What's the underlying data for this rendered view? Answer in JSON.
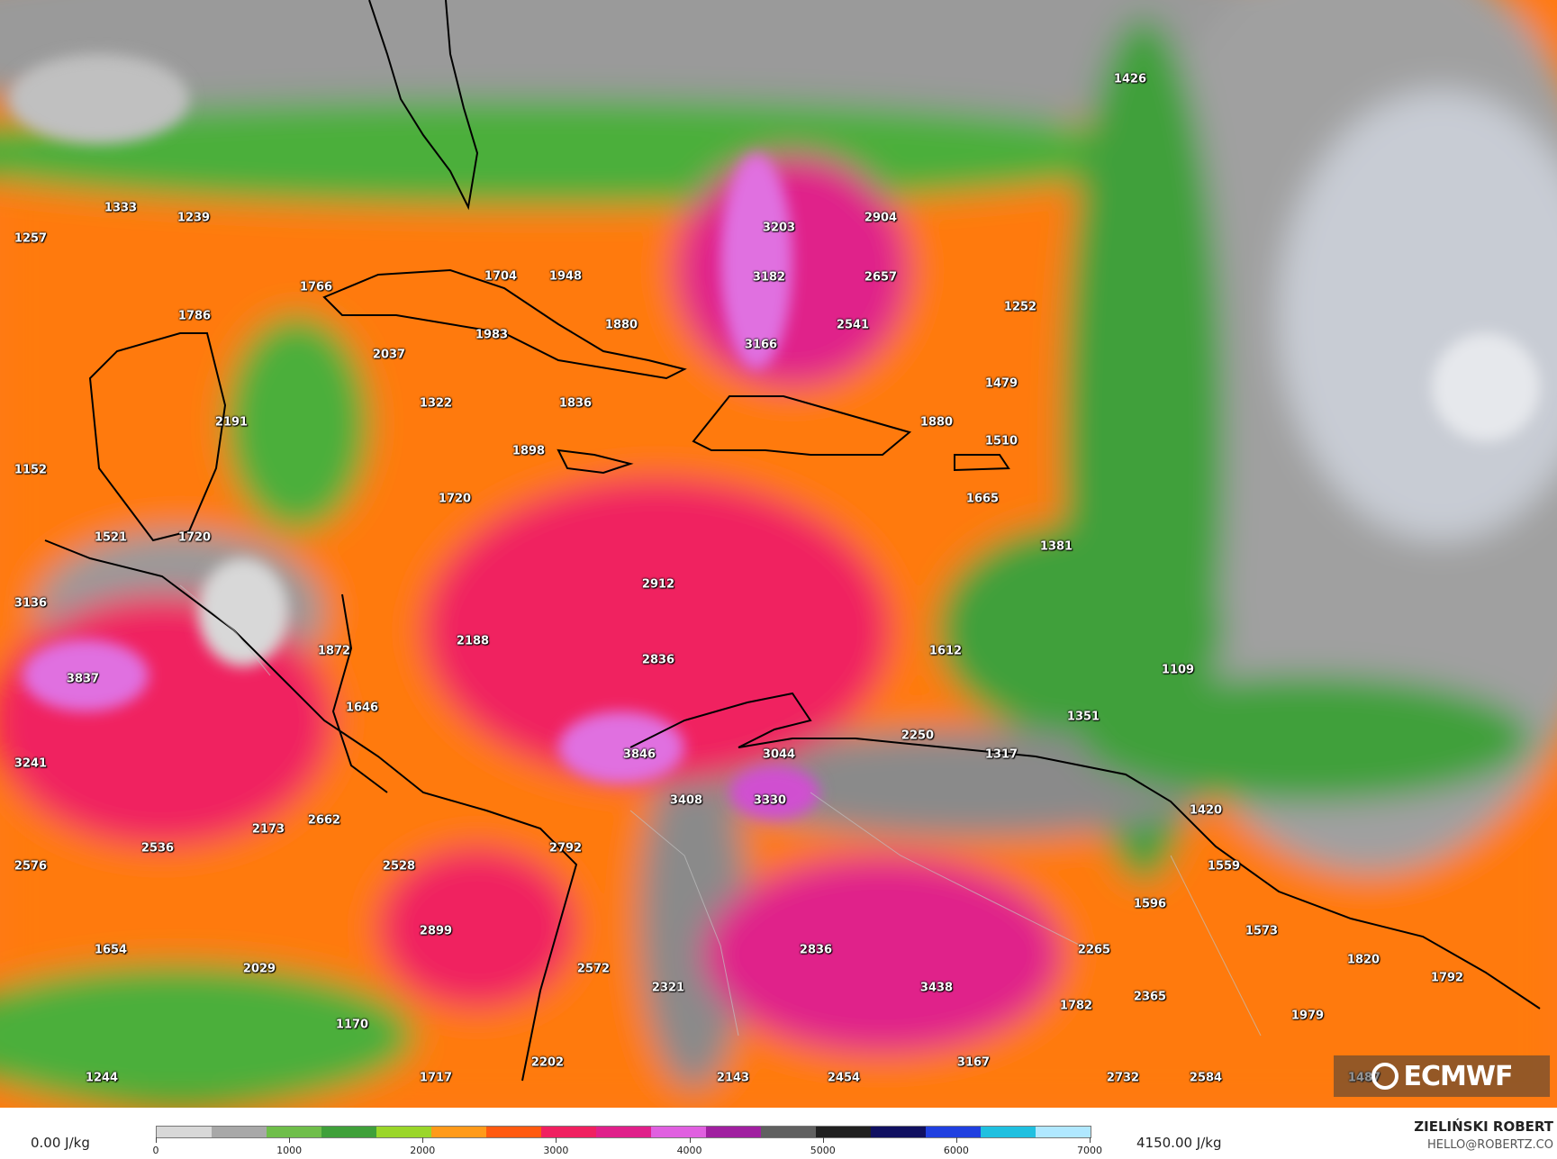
{
  "map": {
    "labels": [
      {
        "v": "1426"
      },
      {
        "v": "1333"
      },
      {
        "v": "1239"
      },
      {
        "v": "1257"
      },
      {
        "v": "3203"
      },
      {
        "v": "2904"
      },
      {
        "v": "1766"
      },
      {
        "v": "1704"
      },
      {
        "v": "1948"
      },
      {
        "v": "3182"
      },
      {
        "v": "2657"
      },
      {
        "v": "1252"
      },
      {
        "v": "1786"
      },
      {
        "v": "1880"
      },
      {
        "v": "1983"
      },
      {
        "v": "2541"
      },
      {
        "v": "3166"
      },
      {
        "v": "2037"
      },
      {
        "v": "1479"
      },
      {
        "v": "1322"
      },
      {
        "v": "1836"
      },
      {
        "v": "2191"
      },
      {
        "v": "1880"
      },
      {
        "v": "1510"
      },
      {
        "v": "1898"
      },
      {
        "v": "1152"
      },
      {
        "v": "1720"
      },
      {
        "v": "1665"
      },
      {
        "v": "1521"
      },
      {
        "v": "1720"
      },
      {
        "v": "1381"
      },
      {
        "v": "2912"
      },
      {
        "v": "3136"
      },
      {
        "v": "2188"
      },
      {
        "v": "1872"
      },
      {
        "v": "1612"
      },
      {
        "v": "2836"
      },
      {
        "v": "3837"
      },
      {
        "v": "1109"
      },
      {
        "v": "1646"
      },
      {
        "v": "1351"
      },
      {
        "v": "2250"
      },
      {
        "v": "3846"
      },
      {
        "v": "3044"
      },
      {
        "v": "1317"
      },
      {
        "v": "3241"
      },
      {
        "v": "3408"
      },
      {
        "v": "3330"
      },
      {
        "v": "1420"
      },
      {
        "v": "2173"
      },
      {
        "v": "2662"
      },
      {
        "v": "2536"
      },
      {
        "v": "2792"
      },
      {
        "v": "2576"
      },
      {
        "v": "2528"
      },
      {
        "v": "1559"
      },
      {
        "v": "1596"
      },
      {
        "v": "2899"
      },
      {
        "v": "1573"
      },
      {
        "v": "1654"
      },
      {
        "v": "2836"
      },
      {
        "v": "2265"
      },
      {
        "v": "1820"
      },
      {
        "v": "2029"
      },
      {
        "v": "2572"
      },
      {
        "v": "3438"
      },
      {
        "v": "1792"
      },
      {
        "v": "2321"
      },
      {
        "v": "2365"
      },
      {
        "v": "1782"
      },
      {
        "v": "1979"
      },
      {
        "v": "1170"
      },
      {
        "v": "2202"
      },
      {
        "v": "3167"
      },
      {
        "v": "1244"
      },
      {
        "v": "1717"
      },
      {
        "v": "2143"
      },
      {
        "v": "2454"
      },
      {
        "v": "2732"
      },
      {
        "v": "2584"
      },
      {
        "v": "1487"
      }
    ]
  },
  "logo": {
    "text": "ECMWF"
  },
  "legend": {
    "min_label": "0.00 J/kg",
    "max_label": "4150.00 J/kg",
    "ticks": [
      "0",
      "1000",
      "2000",
      "3000",
      "4000",
      "5000",
      "6000",
      "7000"
    ],
    "colors": [
      "#d8d8d8",
      "#a8a8a8",
      "#6fbe4a",
      "#3fa03a",
      "#9ad62a",
      "#ff9a1a",
      "#ff5a10",
      "#f02060",
      "#e0208a",
      "#e060e0",
      "#a020a0",
      "#606060",
      "#202020",
      "#101060",
      "#2040e0",
      "#20c0e0",
      "#b0e8ff"
    ]
  },
  "credit": {
    "author": "ZIELIŃSKI ROBERT",
    "email": "HELLO@ROBERTZ.CO"
  }
}
